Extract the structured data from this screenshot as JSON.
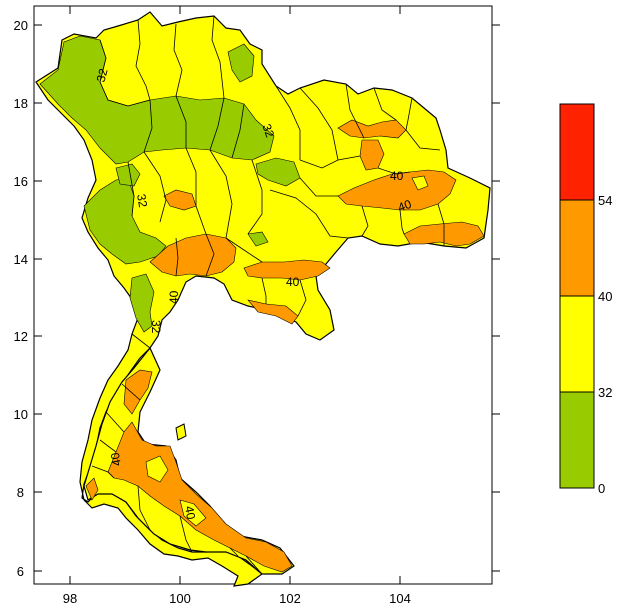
{
  "map": {
    "x_ticks": [
      "98",
      "100",
      "102",
      "104"
    ],
    "y_ticks": [
      "6",
      "8",
      "10",
      "12",
      "14",
      "16",
      "18",
      "20"
    ],
    "contour_labels": [
      "32",
      "32",
      "32",
      "32",
      "40",
      "40",
      "40",
      "40",
      "40",
      "40"
    ]
  },
  "legend": {
    "bins": [
      {
        "from": 0,
        "to": 32,
        "color": "#99cc00"
      },
      {
        "from": 32,
        "to": 40,
        "color": "#ffff00"
      },
      {
        "from": 40,
        "to": 54,
        "color": "#ff9900"
      },
      {
        "from": 54,
        "to": null,
        "color": "#ff2200"
      }
    ],
    "labels": [
      "0",
      "32",
      "40",
      "54"
    ]
  },
  "colors": {
    "green": "#99cc00",
    "yellow": "#ffff00",
    "orange": "#ff9900",
    "red": "#ff2200"
  }
}
